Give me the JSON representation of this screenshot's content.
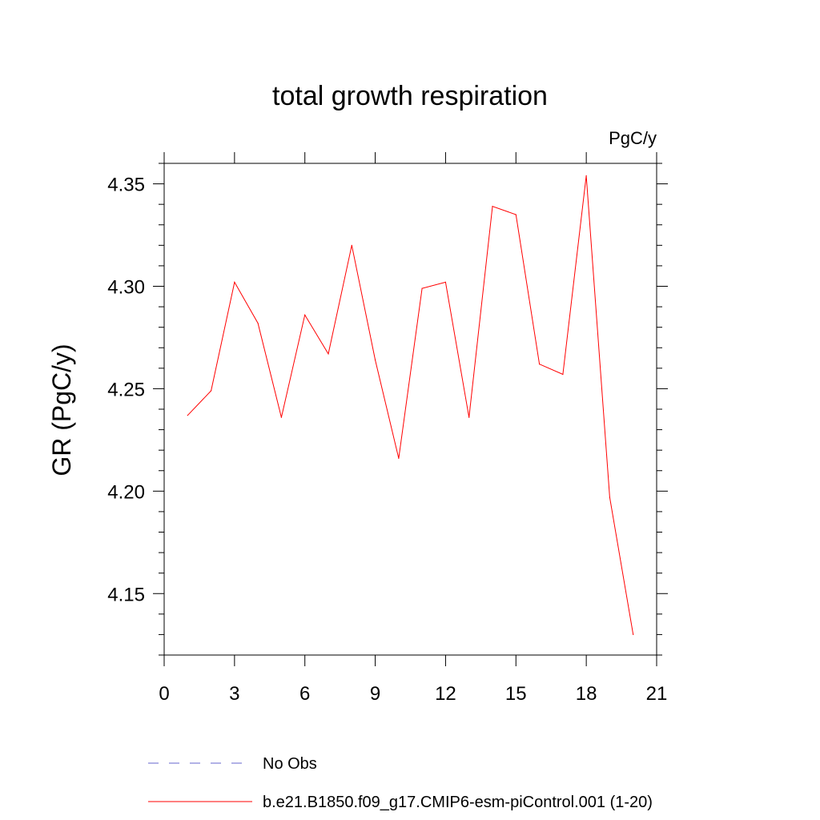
{
  "chart_data": {
    "type": "line",
    "title": "total growth respiration",
    "units": "PgC/y",
    "xlabel": "",
    "ylabel": "GR  (PgC/y)",
    "xlim": [
      0,
      21
    ],
    "ylim": [
      4.12,
      4.36
    ],
    "xticks": [
      "0",
      "3",
      "6",
      "9",
      "12",
      "15",
      "18",
      "21"
    ],
    "yticks": [
      "4.15",
      "4.20",
      "4.25",
      "4.30",
      "4.35"
    ],
    "grid": false,
    "legend": "bottom",
    "series": [
      {
        "name": "b.e21.B1850.f09_g17.CMIP6-esm-piControl.001 (1-20)",
        "color": "#ff0000",
        "style": "solid",
        "x": [
          1,
          2,
          3,
          4,
          5,
          6,
          7,
          8,
          9,
          10,
          11,
          12,
          13,
          14,
          15,
          16,
          17,
          18,
          19,
          20
        ],
        "values": [
          4.237,
          4.249,
          4.302,
          4.282,
          4.236,
          4.286,
          4.267,
          4.32,
          4.264,
          4.216,
          4.299,
          4.302,
          4.236,
          4.339,
          4.335,
          4.262,
          4.257,
          4.354,
          4.197,
          4.13
        ]
      },
      {
        "name": "No Obs",
        "color": "#6666cc",
        "style": "dashed",
        "x": [],
        "values": []
      }
    ]
  }
}
